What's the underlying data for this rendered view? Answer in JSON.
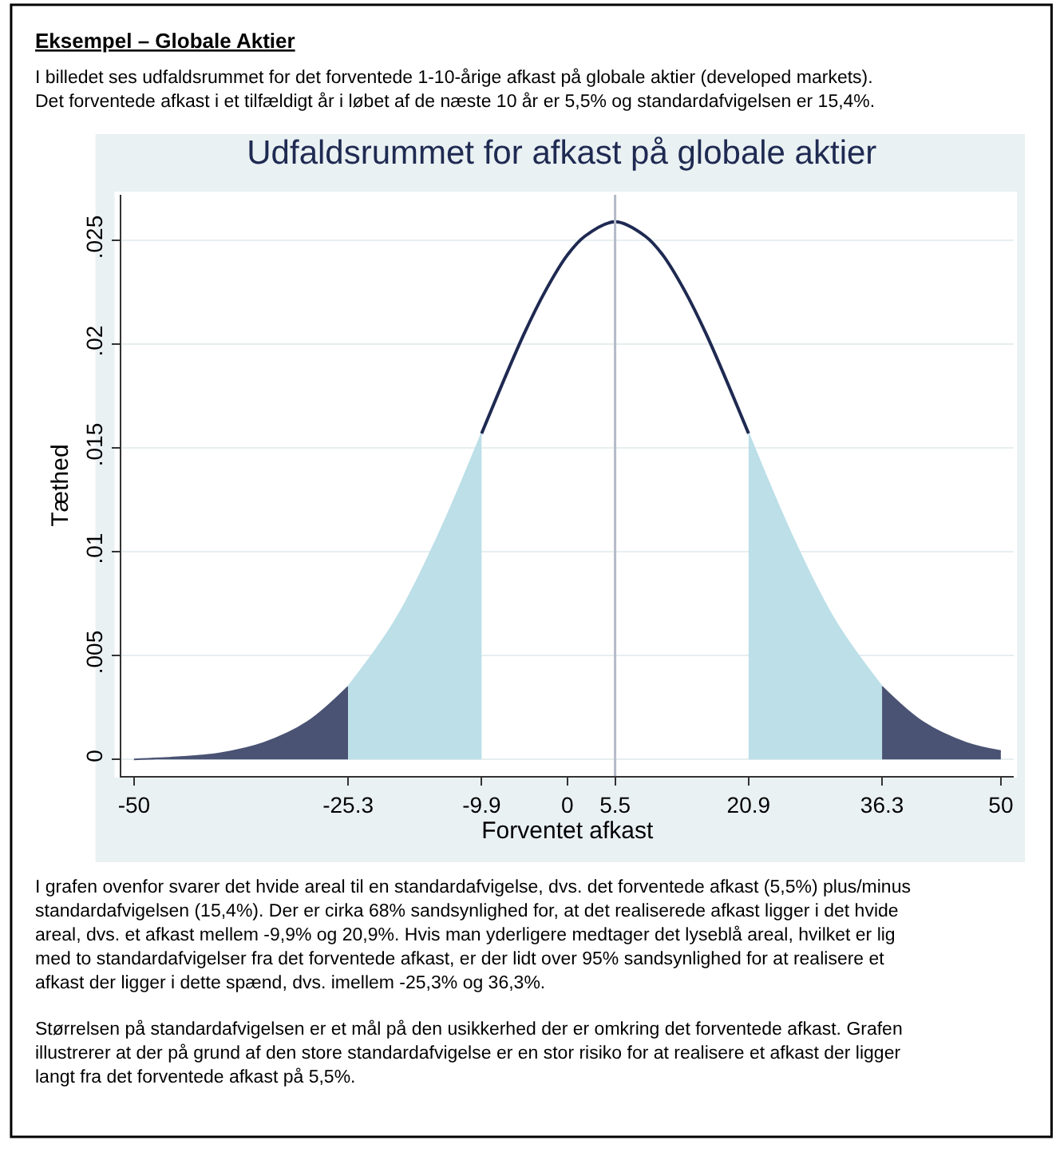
{
  "chart_data": {
    "type": "area",
    "title": "Udfaldsrummet for afkast på globale aktier",
    "xlabel": "Forventet afkast",
    "ylabel": "Tæthed",
    "annotations": [
      "Eksempel – Globale Aktier",
      "I billedet ses udfaldsrummet for det forventede 1-10-årige afkast på globale aktier (developed markets).\nDet forventede afkast i et tilfældigt år i løbet af de næste 10 år er 5,5% og standardafvigelsen er 15,4%.",
      "I grafen ovenfor svarer det hvide areal til en standardafvigelse, dvs. det forventede afkast (5,5%) plus/minus\nstandardafvigelsen (15,4%). Der er cirka 68% sandsynlighed for, at det realiserede afkast ligger i det hvide\nareal, dvs. et afkast mellem -9,9% og 20,9%. Hvis man yderligere medtager det lyseblå areal, hvilket er lig\nmed to standardafvigelser fra det forventede afkast, er der lidt over 95% sandsynlighed for at realisere et\nafkast der ligger i dette spænd, dvs. imellem -25,3% og 36,3%.",
      "Størrelsen på standardafvigelsen er et mål på den usikkerhed der er omkring det forventede afkast. Grafen\nillustrerer at der på grund af den store standardafvigelse er en stor risiko for at realisere et afkast der ligger\nlangt fra det forventede afkast på 5,5%."
    ],
    "series": [
      {
        "color": "#4a5373",
        "x": [
          -50,
          -45,
          -40,
          -35,
          -30,
          -25.3
        ],
        "values": [
          0.0,
          0.0001,
          0.0003,
          0.0008,
          0.0018,
          0.0035
        ]
      },
      {
        "color": "#bcdfe8",
        "x": [
          -25.3,
          -20,
          -15,
          -9.9
        ],
        "values": [
          0.0035,
          0.0066,
          0.0107,
          0.0157
        ]
      },
      {
        "type": "line",
        "color": "#1f2a52",
        "x": [
          -9.9,
          -5,
          -2.5,
          0,
          2,
          5.5,
          9,
          11,
          13.5,
          16,
          20.9
        ],
        "values": [
          0.0157,
          0.0205,
          0.0226,
          0.0243,
          0.0252,
          0.0259,
          0.0252,
          0.0243,
          0.0226,
          0.0205,
          0.0157
        ]
      },
      {
        "color": "#bcdfe8",
        "x": [
          20.9,
          26,
          31,
          36.3
        ],
        "values": [
          0.0157,
          0.0107,
          0.0066,
          0.0035
        ]
      },
      {
        "color": "#4a5373",
        "x": [
          36.3,
          41,
          46,
          50
        ],
        "values": [
          0.0035,
          0.0018,
          0.0008,
          0.0004
        ]
      }
    ],
    "ref_lines": [
      {
        "axis": "x",
        "value": 5.5,
        "color": "#b4bac8"
      }
    ],
    "xlim": [
      -51.5,
      51.5
    ],
    "xticks": [
      -50,
      -25.3,
      -9.9,
      0,
      5.5,
      20.9,
      36.3,
      50
    ],
    "ylim": [
      -0.0008,
      0.0272
    ],
    "yticks": [
      0,
      {
        "value": 0.005,
        "label": ".005"
      },
      {
        "value": 0.01,
        "label": ".01"
      },
      {
        "value": 0.015,
        "label": ".015"
      },
      {
        "value": 0.02,
        "label": ".02"
      },
      {
        "value": 0.025,
        "label": ".025"
      }
    ],
    "grid": "y"
  }
}
